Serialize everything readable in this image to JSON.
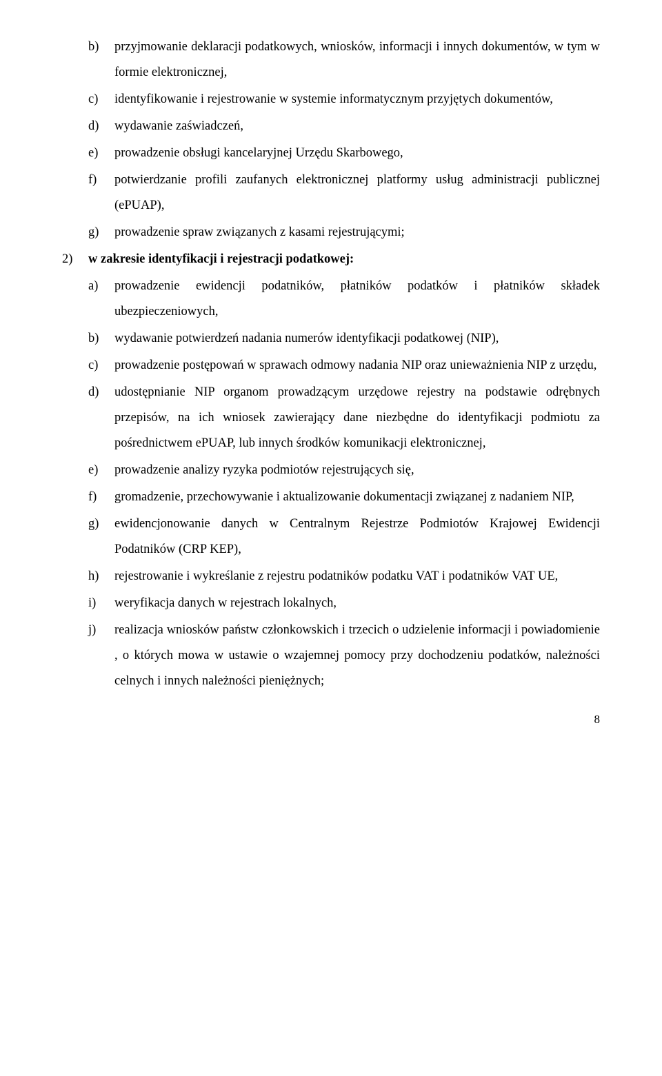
{
  "items": [
    {
      "marker": "b)",
      "level": 2,
      "text": "przyjmowanie deklaracji podatkowych, wniosków, informacji i innych dokumentów, w tym w formie elektronicznej,"
    },
    {
      "marker": "c)",
      "level": 2,
      "text": "identyfikowanie i rejestrowanie w systemie informatycznym przyjętych dokumentów,"
    },
    {
      "marker": "d)",
      "level": 2,
      "text": "wydawanie zaświadczeń,"
    },
    {
      "marker": "e)",
      "level": 2,
      "text": "prowadzenie obsługi kancelaryjnej Urzędu Skarbowego,"
    },
    {
      "marker": "f)",
      "level": 2,
      "text": "potwierdzanie profili zaufanych elektronicznej platformy usług administracji publicznej (ePUAP),"
    },
    {
      "marker": "g)",
      "level": 2,
      "text": "prowadzenie spraw związanych z kasami rejestrującymi;"
    },
    {
      "marker": "2)",
      "level": 1,
      "bold": true,
      "text": "w zakresie identyfikacji i rejestracji podatkowej:"
    },
    {
      "marker": "a)",
      "level": 2,
      "text": "prowadzenie ewidencji podatników, płatników podatków i płatników składek ubezpieczeniowych,"
    },
    {
      "marker": "b)",
      "level": 2,
      "text": "wydawanie potwierdzeń nadania numerów identyfikacji podatkowej (NIP),"
    },
    {
      "marker": "c)",
      "level": 2,
      "text": "prowadzenie postępowań w sprawach odmowy nadania NIP oraz unieważnienia NIP z urzędu,"
    },
    {
      "marker": "d)",
      "level": 2,
      "text": "udostępnianie NIP organom prowadzącym urzędowe rejestry na podstawie odrębnych przepisów, na ich wniosek zawierający dane niezbędne do identyfikacji podmiotu za pośrednictwem ePUAP, lub innych środków komunikacji elektronicznej,"
    },
    {
      "marker": "e)",
      "level": 2,
      "text": "prowadzenie analizy ryzyka podmiotów rejestrujących się,"
    },
    {
      "marker": "f)",
      "level": 2,
      "text": "gromadzenie, przechowywanie i aktualizowanie dokumentacji związanej z nadaniem NIP,"
    },
    {
      "marker": "g)",
      "level": 2,
      "text": "ewidencjonowanie danych w Centralnym Rejestrze Podmiotów Krajowej Ewidencji Podatników (CRP KEP),"
    },
    {
      "marker": "h)",
      "level": 2,
      "text": "rejestrowanie i wykreślanie z rejestru podatników podatku VAT i podatników VAT UE,"
    },
    {
      "marker": "i)",
      "level": 2,
      "text": "weryfikacja danych w rejestrach lokalnych,"
    },
    {
      "marker": "j)",
      "level": 2,
      "text": "realizacja wniosków państw członkowskich i trzecich o udzielenie informacji i powiadomienie , o których mowa w ustawie o wzajemnej pomocy przy dochodzeniu podatków, należności celnych i innych należności pieniężnych;"
    }
  ],
  "page_number": "8"
}
